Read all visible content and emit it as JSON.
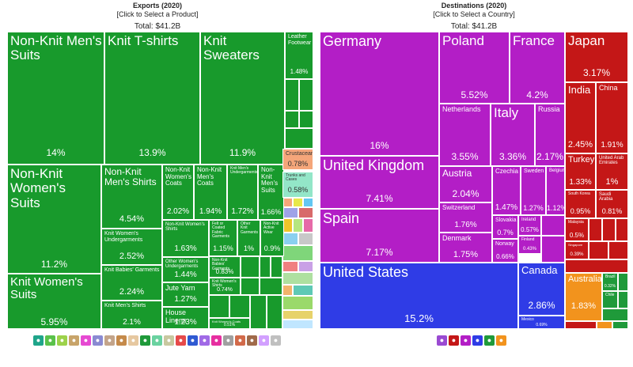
{
  "chart_data": [
    {
      "type": "treemap",
      "title": "Exports (2020)",
      "subtitle": "[Click to Select a Product]",
      "total_label": "Total: $41.2B",
      "items": [
        {
          "name": "Non-Knit Men's Suits",
          "value": "14%"
        },
        {
          "name": "Knit T-shirts",
          "value": "13.9%"
        },
        {
          "name": "Knit Sweaters",
          "value": "11.9%"
        },
        {
          "name": "Leather Footwear",
          "value": "1.48%"
        },
        {
          "name": "Non-Knit Women's Suits",
          "value": "11.2%"
        },
        {
          "name": "Knit Women's Suits",
          "value": "5.95%"
        },
        {
          "name": "Non-Knit Men's Shirts",
          "value": "4.54%"
        },
        {
          "name": "Knit Women's Undergarments",
          "value": "2.52%"
        },
        {
          "name": "Knit Babies' Garments",
          "value": "2.24%"
        },
        {
          "name": "Knit Men's Shirts",
          "value": "2.1%"
        },
        {
          "name": "Non-Knit Women's Coats",
          "value": "2.02%"
        },
        {
          "name": "Non-Knit Men's Coats",
          "value": "1.94%"
        },
        {
          "name": "Knit Men's Undergarments",
          "value": "1.72%"
        },
        {
          "name": "Non-Knit Men's Suits",
          "value": "1.66%"
        },
        {
          "name": "Non-Knit Women's Shirts",
          "value": "1.63%"
        },
        {
          "name": "Felt or Coated Fabric Garments",
          "value": "1.15%"
        },
        {
          "name": "Other Knit Garments",
          "value": "1%"
        },
        {
          "name": "Non-Knit Active Wear",
          "value": "0.9%"
        },
        {
          "name": "Other Women's Undergarments",
          "value": "1.44%"
        },
        {
          "name": "Non-Knit Babies' Garments",
          "value": "0.83%"
        },
        {
          "name": "Jute Yarn",
          "value": "1.27%"
        },
        {
          "name": "Knit Women's Shirts",
          "value": "0.74%"
        },
        {
          "name": "House Linens",
          "value": "1.23%"
        },
        {
          "name": "Knit Women's Coats",
          "value": "0.51%"
        },
        {
          "name": "Crustaceans",
          "value": "0.78%"
        },
        {
          "name": "Trunks and Cases",
          "value": "0.58%"
        }
      ]
    },
    {
      "type": "treemap",
      "title": "Destinations (2020)",
      "subtitle": "[Click to Select a Country]",
      "total_label": "Total: $41.2B",
      "items": [
        {
          "name": "Germany",
          "value": "16%"
        },
        {
          "name": "Poland",
          "value": "5.52%"
        },
        {
          "name": "France",
          "value": "4.2%"
        },
        {
          "name": "Netherlands",
          "value": "3.55%"
        },
        {
          "name": "Italy",
          "value": "3.36%"
        },
        {
          "name": "Russia",
          "value": "2.17%"
        },
        {
          "name": "United Kingdom",
          "value": "7.41%"
        },
        {
          "name": "Austria",
          "value": "2.04%"
        },
        {
          "name": "Czechia",
          "value": "1.47%"
        },
        {
          "name": "Sweden",
          "value": "1.27%"
        },
        {
          "name": "Belgium",
          "value": "1.12%"
        },
        {
          "name": "Spain",
          "value": "7.17%"
        },
        {
          "name": "Switzerland",
          "value": "1.76%"
        },
        {
          "name": "Slovakia",
          "value": "0.7%"
        },
        {
          "name": "Ireland",
          "value": "0.57%"
        },
        {
          "name": "Denmark",
          "value": "1.75%"
        },
        {
          "name": "Norway",
          "value": "0.66%"
        },
        {
          "name": "Finland",
          "value": "0.43%"
        },
        {
          "name": "United States",
          "value": "15.2%"
        },
        {
          "name": "Canada",
          "value": "2.86%"
        },
        {
          "name": "Mexico",
          "value": "0.69%"
        },
        {
          "name": "Japan",
          "value": "3.17%"
        },
        {
          "name": "India",
          "value": "2.45%"
        },
        {
          "name": "China",
          "value": "1.91%"
        },
        {
          "name": "Turkey",
          "value": "1.33%"
        },
        {
          "name": "United Arab Emirates",
          "value": "1%"
        },
        {
          "name": "South Korea",
          "value": "0.95%"
        },
        {
          "name": "Saudi Arabia",
          "value": "0.81%"
        },
        {
          "name": "Malaysia",
          "value": "0.5%"
        },
        {
          "name": "Singapore",
          "value": "0.39%"
        },
        {
          "name": "Australia",
          "value": "1.83%"
        },
        {
          "name": "Brazil",
          "value": "0.32%"
        },
        {
          "name": "Chile",
          "value": ""
        }
      ]
    }
  ],
  "colors": {
    "exports_green": "#189a2c",
    "europe_purple": "#b31ec6",
    "north_america_blue": "#2f3ce6",
    "asia_red": "#c41717",
    "oceania_orange": "#f2931d",
    "south_america_green": "#1f9a3a"
  },
  "legend_icons": {
    "exports": [
      "animal-icon",
      "vegetable-icon",
      "foodstuff-icon",
      "mineral-icon",
      "chemical-icon",
      "plastic-icon",
      "leather-icon",
      "wood-icon",
      "paper-icon",
      "textile-icon",
      "footwear-icon",
      "stone-icon",
      "metal-icon",
      "machine-icon",
      "transport-icon",
      "instrument-icon",
      "weapon-icon",
      "misc-icon",
      "art-icon",
      "gem-icon",
      "other-icon"
    ],
    "destinations": [
      "africa-icon",
      "asia-icon",
      "europe-icon",
      "north-america-icon",
      "south-america-icon",
      "oceania-icon"
    ]
  }
}
